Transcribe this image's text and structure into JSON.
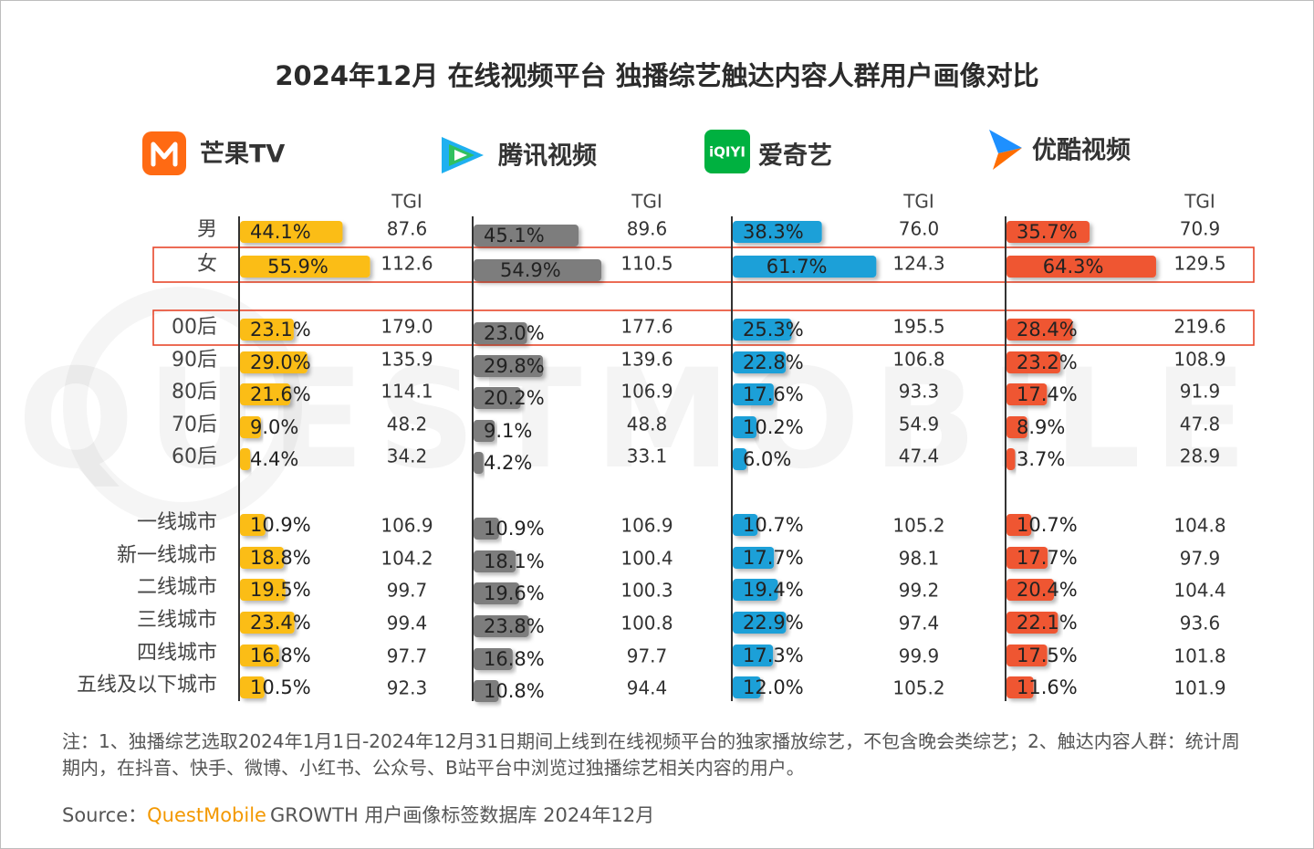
{
  "title": "2024年12月 在线视频平台 独播综艺触达内容人群用户画像对比",
  "note": "注：1、独播综艺选取2024年1月1日-2024年12月31日期间上线到在线视频平台的独家播放综艺，不包含晚会类综艺；2、触达内容人群：统计周期内，在抖音、快手、微博、小红书、公众号、B站平台中浏览过独播综艺相关内容的用户。",
  "source": {
    "label": "Source：",
    "brand": "QuestMobile",
    "rest": "GROWTH 用户画像标签数据库 2024年12月"
  },
  "watermark": "QUESTMOBILE",
  "tgi_label": "TGI",
  "colors": {
    "mango": "#fbbd19",
    "tencent": "#7d7d7d",
    "iqiyi": "#1fa0d8",
    "youku": "#ef5733",
    "highlight": "#e8472b"
  },
  "highlighted_rows": [
    "女",
    "00后"
  ],
  "chart_data": {
    "type": "bar",
    "categories": [
      "男",
      "女",
      "00后",
      "90后",
      "80后",
      "70后",
      "60后",
      "一线城市",
      "新一线城市",
      "二线城市",
      "三线城市",
      "四线城市",
      "五线及以下城市"
    ],
    "series": [
      {
        "name": "芒果TV",
        "logo": "mango-logo-icon",
        "values": [
          44.1,
          55.9,
          23.1,
          29.0,
          21.6,
          9.0,
          4.4,
          10.9,
          18.8,
          19.5,
          23.4,
          16.8,
          10.5
        ],
        "labels": [
          "44.1%",
          "55.9%",
          "23.1%",
          "29.0%",
          "21.6%",
          "9.0%",
          "4.4%",
          "10.9%",
          "18.8%",
          "19.5%",
          "23.4%",
          "16.8%",
          "10.5%"
        ],
        "tgi": [
          "87.6",
          "112.6",
          "179.0",
          "135.9",
          "114.1",
          "48.2",
          "34.2",
          "106.9",
          "104.2",
          "99.7",
          "99.4",
          "97.7",
          "92.3"
        ]
      },
      {
        "name": "腾讯视频",
        "logo": "tencent-video-logo-icon",
        "values": [
          45.1,
          54.9,
          23.0,
          29.8,
          20.2,
          9.1,
          4.2,
          10.9,
          18.1,
          19.6,
          23.8,
          16.8,
          10.8
        ],
        "labels": [
          "45.1%",
          "54.9%",
          "23.0%",
          "29.8%",
          "20.2%",
          "9.1%",
          "4.2%",
          "10.9%",
          "18.1%",
          "19.6%",
          "23.8%",
          "16.8%",
          "10.8%"
        ],
        "tgi": [
          "89.6",
          "110.5",
          "177.6",
          "139.6",
          "106.9",
          "48.8",
          "33.1",
          "106.9",
          "100.4",
          "100.3",
          "100.8",
          "97.7",
          "94.4"
        ]
      },
      {
        "name": "爱奇艺",
        "logo": "iqiyi-logo-icon",
        "values": [
          38.3,
          61.7,
          25.3,
          22.8,
          17.6,
          10.2,
          6.0,
          10.7,
          17.7,
          19.4,
          22.9,
          17.3,
          12.0
        ],
        "labels": [
          "38.3%",
          "61.7%",
          "25.3%",
          "22.8%",
          "17.6%",
          "10.2%",
          "6.0%",
          "10.7%",
          "17.7%",
          "19.4%",
          "22.9%",
          "17.3%",
          "12.0%"
        ],
        "tgi": [
          "76.0",
          "124.3",
          "195.5",
          "106.8",
          "93.3",
          "54.9",
          "47.4",
          "105.2",
          "98.1",
          "99.2",
          "97.4",
          "99.9",
          "105.2"
        ]
      },
      {
        "name": "优酷视频",
        "logo": "youku-logo-icon",
        "values": [
          35.7,
          64.3,
          28.4,
          23.2,
          17.4,
          8.9,
          3.7,
          10.7,
          17.7,
          20.4,
          22.1,
          17.5,
          11.6
        ],
        "labels": [
          "35.7%",
          "64.3%",
          "28.4%",
          "23.2%",
          "17.4%",
          "8.9%",
          "3.7%",
          "10.7%",
          "17.7%",
          "20.4%",
          "22.1%",
          "17.5%",
          "11.6%"
        ],
        "tgi": [
          "70.9",
          "129.5",
          "219.6",
          "108.9",
          "91.9",
          "47.8",
          "28.9",
          "104.8",
          "97.9",
          "104.4",
          "93.6",
          "101.8",
          "101.9"
        ]
      }
    ]
  }
}
